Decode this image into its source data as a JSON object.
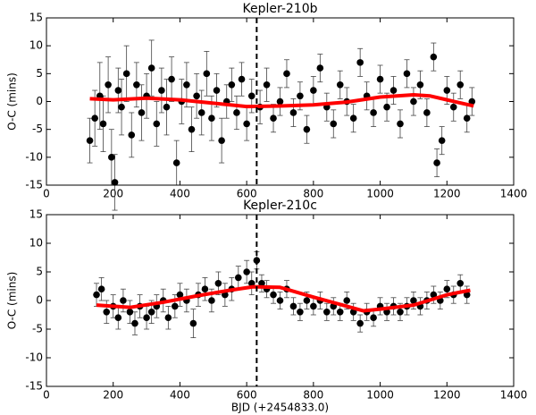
{
  "chart_data": [
    {
      "type": "scatter",
      "title": "Kepler-210b",
      "ylabel": "O-C (mins)",
      "xlim": [
        0,
        1400
      ],
      "xticks": [
        0,
        200,
        400,
        600,
        800,
        1000,
        1200,
        1400
      ],
      "ylim": [
        -15,
        15
      ],
      "yticks": [
        -15,
        -10,
        -5,
        0,
        5,
        10,
        15
      ],
      "vline": 630,
      "series": [
        {
          "type": "scatter",
          "color": "#000000",
          "x": [
            130,
            145,
            160,
            170,
            185,
            195,
            205,
            215,
            225,
            240,
            255,
            270,
            285,
            300,
            315,
            330,
            345,
            360,
            375,
            390,
            405,
            420,
            435,
            450,
            465,
            480,
            495,
            510,
            525,
            540,
            555,
            570,
            585,
            600,
            615,
            640,
            660,
            680,
            700,
            720,
            740,
            760,
            780,
            800,
            820,
            840,
            860,
            880,
            900,
            920,
            940,
            960,
            980,
            1000,
            1020,
            1040,
            1060,
            1080,
            1100,
            1120,
            1140,
            1160,
            1170,
            1185,
            1200,
            1220,
            1240,
            1260,
            1275
          ],
          "values": [
            -7,
            -3,
            1,
            -4,
            3,
            -10,
            -14.5,
            2,
            -1,
            5,
            -6,
            3,
            -2,
            1,
            6,
            -4,
            2,
            -1,
            4,
            -11,
            0,
            3,
            -5,
            1,
            -2,
            5,
            -3,
            2,
            -7,
            0,
            3,
            -2,
            4,
            -4,
            1,
            -1,
            3,
            -3,
            0,
            5,
            -2,
            1,
            -5,
            2,
            6,
            -1,
            -4,
            3,
            0,
            -3,
            7,
            1,
            -2,
            4,
            -1,
            2,
            -4,
            5,
            0,
            3,
            -2,
            8,
            -11,
            -7,
            2,
            -1,
            3,
            -3,
            0
          ],
          "errors": [
            4,
            5,
            6,
            5,
            5,
            5,
            5,
            4,
            5,
            5,
            4,
            4,
            5,
            4,
            5,
            4,
            4,
            5,
            4,
            4,
            4,
            4,
            4,
            4,
            4,
            4,
            4,
            3,
            4,
            3,
            3,
            3,
            3,
            3,
            3,
            3,
            3,
            2.5,
            2.5,
            2.5,
            2.5,
            2.5,
            2.5,
            2.5,
            2.5,
            2.5,
            2.5,
            2.5,
            2.5,
            2.5,
            2.5,
            2.5,
            2.5,
            2.5,
            2.5,
            2.5,
            2.5,
            2.5,
            2.5,
            2.5,
            2.5,
            2.5,
            2.5,
            2.5,
            2.5,
            2.5,
            2.5,
            2.5,
            2.5
          ]
        },
        {
          "type": "line",
          "color": "#ff0000",
          "x": [
            130,
            200,
            300,
            400,
            500,
            600,
            700,
            800,
            900,
            1000,
            1100,
            1150,
            1200,
            1280
          ],
          "values": [
            0.5,
            0.3,
            0.6,
            0.3,
            -0.3,
            -0.9,
            -0.8,
            -0.6,
            -0.1,
            0.8,
            1.2,
            1.0,
            0.3,
            -0.8
          ]
        }
      ]
    },
    {
      "type": "scatter",
      "title": "Kepler-210c",
      "ylabel": "O-C (mins)",
      "xlabel": "BJD (+2454833.0)",
      "xlim": [
        0,
        1400
      ],
      "xticks": [
        0,
        200,
        400,
        600,
        800,
        1000,
        1200,
        1400
      ],
      "ylim": [
        -15,
        15
      ],
      "yticks": [
        -15,
        -10,
        -5,
        0,
        5,
        10,
        15
      ],
      "vline": 630,
      "series": [
        {
          "type": "scatter",
          "color": "#000000",
          "x": [
            150,
            165,
            180,
            200,
            215,
            230,
            250,
            265,
            280,
            300,
            315,
            330,
            350,
            365,
            385,
            400,
            420,
            440,
            455,
            475,
            495,
            515,
            535,
            555,
            575,
            600,
            615,
            630,
            645,
            660,
            680,
            700,
            720,
            740,
            760,
            780,
            800,
            820,
            840,
            860,
            880,
            900,
            920,
            940,
            960,
            980,
            1000,
            1020,
            1040,
            1060,
            1080,
            1100,
            1120,
            1140,
            1160,
            1180,
            1200,
            1220,
            1240,
            1260
          ],
          "values": [
            1,
            2,
            -2,
            -1,
            -3,
            0,
            -2,
            -4,
            -1,
            -3,
            -2,
            -1,
            0,
            -3,
            -1,
            1,
            0,
            -4,
            1,
            2,
            0,
            3,
            1,
            2,
            4,
            5,
            3,
            7,
            3,
            2,
            1,
            0,
            2,
            -1,
            -2,
            0,
            -1,
            0,
            -2,
            -1,
            -2,
            0,
            -2,
            -4,
            -2,
            -3,
            -1,
            -2,
            -1,
            -2,
            -1,
            0,
            -1,
            0,
            1,
            0,
            2,
            1,
            3,
            1
          ],
          "errors": [
            2,
            2,
            2,
            2,
            2,
            2,
            2,
            2,
            2,
            2,
            2,
            2,
            2,
            2,
            2,
            2,
            2,
            2.5,
            2,
            2,
            2,
            2,
            2,
            2,
            2,
            2,
            2,
            1.5,
            1.5,
            1.5,
            1.5,
            1.5,
            1.5,
            1.5,
            1.5,
            1.5,
            1.5,
            1.5,
            1.5,
            1.5,
            1.5,
            1.5,
            1.5,
            1.5,
            1.5,
            1.5,
            1.5,
            1.5,
            1.5,
            1.5,
            1.5,
            1.5,
            1.5,
            1.5,
            1.5,
            1.5,
            1.5,
            1.5,
            1.5,
            1.5
          ]
        },
        {
          "type": "line",
          "color": "#ff0000",
          "x": [
            150,
            250,
            350,
            450,
            550,
            620,
            700,
            800,
            900,
            950,
            1000,
            1100,
            1200,
            1270
          ],
          "values": [
            -0.8,
            -1.2,
            -0.3,
            0.8,
            1.8,
            2.4,
            2.3,
            0.6,
            -1.0,
            -1.8,
            -1.5,
            -0.8,
            1.0,
            1.8
          ]
        }
      ]
    }
  ]
}
